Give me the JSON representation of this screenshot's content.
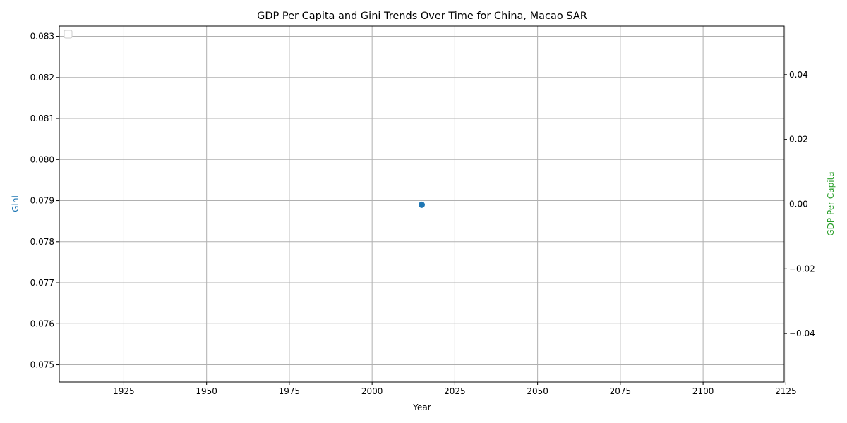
{
  "chart_data": {
    "type": "scatter",
    "title": "GDP Per Capita and Gini Trends Over Time for China, Macao SAR",
    "xlabel": "Year",
    "ylabel_left": "Gini",
    "ylabel_right": "GDP Per Capita",
    "xlim": [
      1905.5,
      2124.5
    ],
    "ylim_left": [
      0.07458,
      0.08325
    ],
    "ylim_right": [
      -0.055,
      0.055
    ],
    "x_ticks": [
      1925,
      1950,
      1975,
      2000,
      2025,
      2050,
      2075,
      2100,
      2125
    ],
    "y_left_ticks": [
      0.075,
      0.076,
      0.077,
      0.078,
      0.079,
      0.08,
      0.081,
      0.082,
      0.083
    ],
    "y_left_tick_labels": [
      "0.075",
      "0.076",
      "0.077",
      "0.078",
      "0.079",
      "0.080",
      "0.081",
      "0.082",
      "0.083"
    ],
    "y_right_ticks": [
      -0.04,
      -0.02,
      0.0,
      0.02,
      0.04
    ],
    "y_right_tick_labels": [
      "−0.04",
      "−0.02",
      "0.00",
      "0.02",
      "0.04"
    ],
    "grid": true,
    "legend_position": "upper-left",
    "series": [
      {
        "axis": "left",
        "color": "#1f77b4",
        "marker": "circle",
        "x": [
          2015
        ],
        "y": [
          0.0789
        ]
      },
      {
        "axis": "right",
        "color": "#2ca02c",
        "marker": "circle",
        "x": [],
        "y": []
      }
    ],
    "colors": {
      "left_axis_label": "#1f77b4",
      "right_axis_label": "#2ca02c",
      "grid": "#b0b0b0"
    }
  }
}
